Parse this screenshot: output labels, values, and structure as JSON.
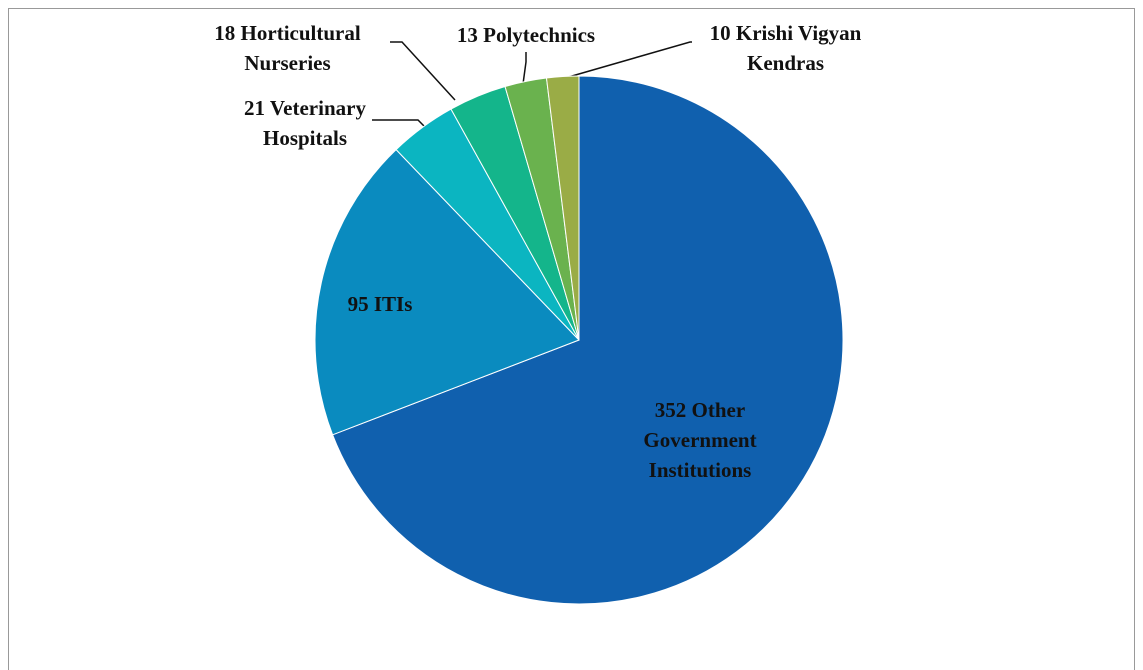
{
  "chart_data": {
    "type": "pie",
    "categories": [
      "Other Government Institutions",
      "ITIs",
      "Veterinary Hospitals",
      "Horticultural Nurseries",
      "Polytechnics",
      "Krishi Vigyan Kendras"
    ],
    "values": [
      352,
      95,
      21,
      18,
      13,
      10
    ],
    "colors": [
      "#1060ae",
      "#0a8bbf",
      "#0bb5c1",
      "#14b58b",
      "#6ab24e",
      "#9aac46"
    ]
  }
}
